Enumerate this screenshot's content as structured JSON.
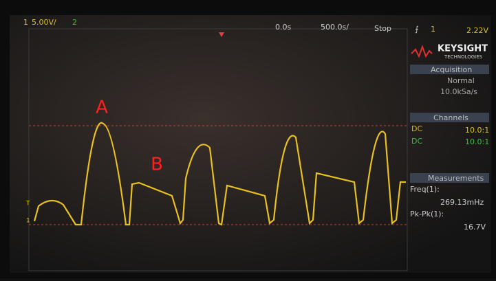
{
  "top_bar": {
    "channel1": "1",
    "scale1": "5.00V/",
    "channel2": "2",
    "delay": "0.0s",
    "timebase": "500.0s/",
    "run_state": "Stop",
    "trigger_channel": "1",
    "trigger_level": "2.22V"
  },
  "brand": {
    "name": "KEYSIGHT",
    "subtitle": "TECHNOLOGIES"
  },
  "acquisition": {
    "title": "Acquisition",
    "mode": "Normal",
    "rate": "10.0kSa/s"
  },
  "channels": {
    "title": "Channels",
    "rows": [
      {
        "coupling": "DC",
        "probe": "10.0:1"
      },
      {
        "coupling": "DC",
        "probe": "10.0:1"
      }
    ]
  },
  "measurements": {
    "title": "Measurements",
    "items": [
      {
        "label": "Freq(1):",
        "value": "269.13mHz"
      },
      {
        "label": "Pk-Pk(1):",
        "value": "16.7V"
      }
    ]
  },
  "annotations": [
    "A",
    "B"
  ],
  "markers": {
    "trigger": "T",
    "ground": "1"
  }
}
